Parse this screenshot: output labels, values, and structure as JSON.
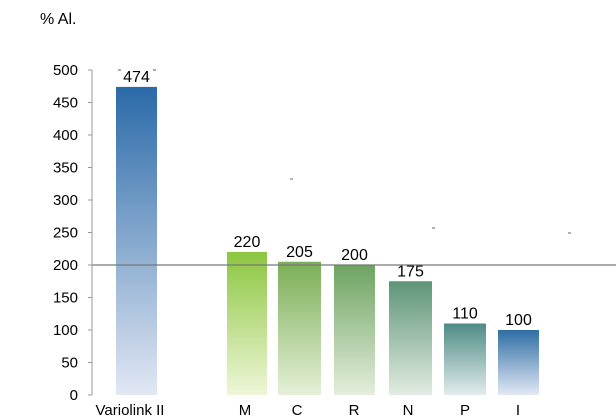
{
  "chart_data": {
    "type": "bar",
    "ylabel": "% Al.",
    "ylim": [
      0,
      500
    ],
    "yticks": [
      0,
      50,
      100,
      150,
      200,
      250,
      300,
      350,
      400,
      450,
      500
    ],
    "categories": [
      "Variolink II",
      "M",
      "C",
      "R",
      "N",
      "P",
      "I"
    ],
    "values": [
      474,
      220,
      205,
      200,
      175,
      110,
      100
    ],
    "data_labels": [
      "474",
      "220",
      "205",
      "200",
      "175",
      "110",
      "100"
    ],
    "reference_line": 200,
    "grid": false,
    "bar_colors": [
      [
        "#2a6aa8",
        "#e2e7f4"
      ],
      [
        "#8cc63f",
        "#eef6d8"
      ],
      [
        "#7aae55",
        "#e6f0d8"
      ],
      [
        "#6ea362",
        "#e4eedc"
      ],
      [
        "#5e9577",
        "#e2ece2"
      ],
      [
        "#4f8b85",
        "#e2ecec"
      ],
      [
        "#2f6ea5",
        "#e3e8f4"
      ]
    ]
  }
}
